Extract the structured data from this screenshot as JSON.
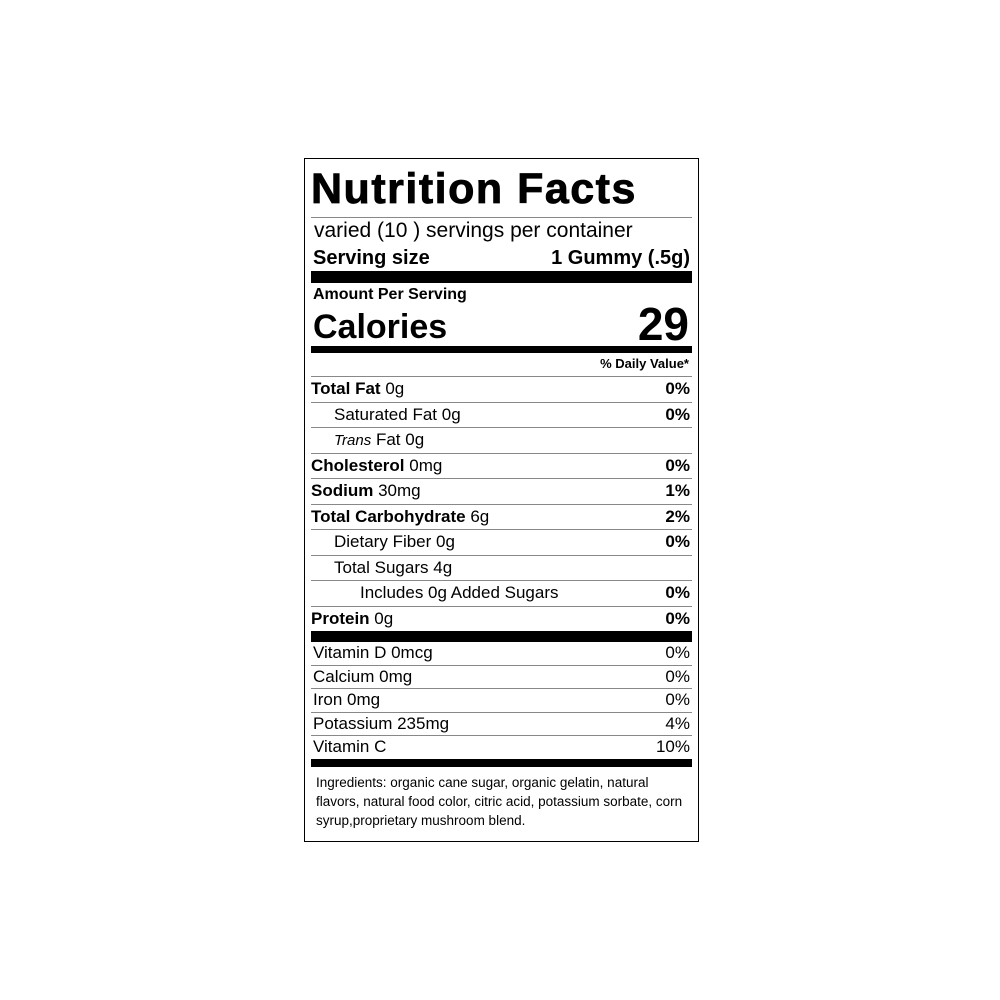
{
  "label": {
    "title": "Nutrition Facts",
    "servings_per_container": "varied (10 ) servings per container",
    "serving_size_label": "Serving size",
    "serving_size_value": "1 Gummy (.5g)",
    "amount_per_serving": "Amount Per Serving",
    "calories_label": "Calories",
    "calories_value": "29",
    "daily_value_header": "% Daily Value*",
    "nutrients": [
      {
        "name": "Total Fat",
        "amount": "0g",
        "dv": "0%"
      },
      {
        "name": "Saturated Fat",
        "amount": "0g",
        "dv": "0%"
      },
      {
        "name": "Trans",
        "amount": "Fat 0g",
        "dv": ""
      },
      {
        "name": "Cholesterol",
        "amount": "0mg",
        "dv": "0%"
      },
      {
        "name": "Sodium",
        "amount": "30mg",
        "dv": "1%"
      },
      {
        "name": "Total Carbohydrate",
        "amount": "6g",
        "dv": "2%"
      },
      {
        "name": "Dietary Fiber",
        "amount": "0g",
        "dv": "0%"
      },
      {
        "name": "Total Sugars",
        "amount": "4g",
        "dv": ""
      },
      {
        "name": "Includes 0g Added Sugars",
        "amount": "",
        "dv": "0%"
      },
      {
        "name": "Protein",
        "amount": "0g",
        "dv": "0%"
      }
    ],
    "vitamins": [
      {
        "name": "Vitamin D 0mcg",
        "dv": "0%"
      },
      {
        "name": "Calcium 0mg",
        "dv": "0%"
      },
      {
        "name": "Iron 0mg",
        "dv": "0%"
      },
      {
        "name": "Potassium 235mg",
        "dv": "4%"
      },
      {
        "name": "Vitamin C",
        "dv": "10%"
      }
    ],
    "ingredients": "Ingredients:  organic cane sugar, organic gelatin, natural flavors, natural food color, citric acid, potassium sorbate, corn syrup,proprietary mushroom blend."
  }
}
